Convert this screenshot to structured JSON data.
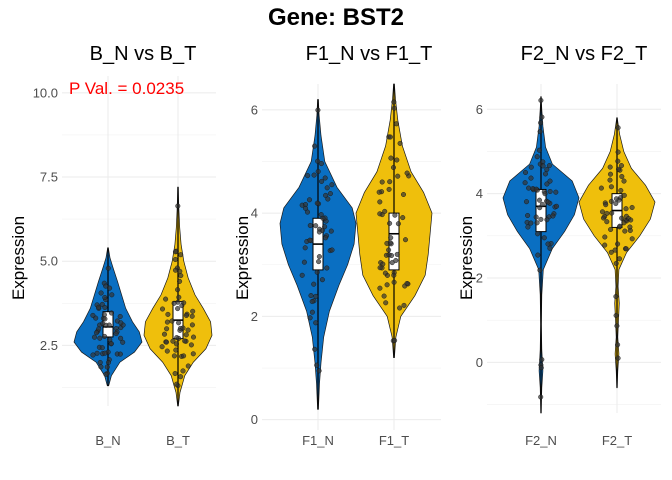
{
  "figure": {
    "title": "Gene: BST2",
    "colors": {
      "normal": "#0a6fc2",
      "tumor": "#efbf0c",
      "annotation": "#ff0000",
      "grid": "#ebebeb"
    }
  },
  "chart_data": [
    {
      "type": "violin",
      "title": "B_N vs B_T",
      "xlabel": "",
      "ylabel": "Expression",
      "ylim": [
        0.7,
        10.5
      ],
      "yticks": [
        2.5,
        5.0,
        7.5,
        10.0
      ],
      "ytick_labels": [
        "2.5",
        "5.0",
        "7.5",
        "10.0"
      ],
      "categories": [
        "B_N",
        "B_T"
      ],
      "annotation": "P Val. = 0.0235",
      "groups": [
        {
          "name": "B_N",
          "range": [
            1.3,
            5.4
          ],
          "q1": 2.75,
          "median": 3.05,
          "q3": 3.5,
          "density": [
            [
              1.3,
              0.02
            ],
            [
              1.6,
              0.1
            ],
            [
              2.0,
              0.35
            ],
            [
              2.3,
              0.78
            ],
            [
              2.6,
              1.0
            ],
            [
              2.9,
              0.92
            ],
            [
              3.2,
              0.72
            ],
            [
              3.6,
              0.52
            ],
            [
              4.0,
              0.4
            ],
            [
              4.4,
              0.28
            ],
            [
              4.8,
              0.15
            ],
            [
              5.1,
              0.06
            ],
            [
              5.4,
              0.01
            ]
          ]
        },
        {
          "name": "B_T",
          "range": [
            0.7,
            7.2
          ],
          "q1": 2.7,
          "median": 3.25,
          "q3": 3.8,
          "density": [
            [
              0.7,
              0.01
            ],
            [
              1.1,
              0.06
            ],
            [
              1.6,
              0.2
            ],
            [
              2.0,
              0.45
            ],
            [
              2.4,
              0.82
            ],
            [
              2.8,
              1.0
            ],
            [
              3.2,
              0.96
            ],
            [
              3.6,
              0.74
            ],
            [
              4.0,
              0.5
            ],
            [
              4.5,
              0.3
            ],
            [
              5.0,
              0.17
            ],
            [
              5.5,
              0.09
            ],
            [
              6.0,
              0.05
            ],
            [
              6.6,
              0.025
            ],
            [
              7.2,
              0.01
            ]
          ]
        }
      ]
    },
    {
      "type": "violin",
      "title": "F1_N vs F1_T",
      "xlabel": "",
      "ylabel": "Expression",
      "ylim": [
        -0.2,
        6.5
      ],
      "yticks": [
        0,
        2,
        4,
        6
      ],
      "ytick_labels": [
        "0",
        "2",
        "4",
        "6"
      ],
      "categories": [
        "F1_N",
        "F1_T"
      ],
      "annotation": "",
      "groups": [
        {
          "name": "F1_N",
          "range": [
            0.2,
            6.2
          ],
          "q1": 2.9,
          "median": 3.4,
          "q3": 3.9,
          "density": [
            [
              0.2,
              0.01
            ],
            [
              0.7,
              0.04
            ],
            [
              1.1,
              0.08
            ],
            [
              1.6,
              0.15
            ],
            [
              2.1,
              0.3
            ],
            [
              2.6,
              0.55
            ],
            [
              3.0,
              0.78
            ],
            [
              3.4,
              0.95
            ],
            [
              3.8,
              1.0
            ],
            [
              4.1,
              0.9
            ],
            [
              4.5,
              0.5
            ],
            [
              5.0,
              0.18
            ],
            [
              5.5,
              0.08
            ],
            [
              5.9,
              0.03
            ],
            [
              6.2,
              0.01
            ]
          ]
        },
        {
          "name": "F1_T",
          "range": [
            1.2,
            6.5
          ],
          "q1": 2.9,
          "median": 3.6,
          "q3": 4.0,
          "density": [
            [
              1.2,
              0.01
            ],
            [
              1.6,
              0.05
            ],
            [
              2.0,
              0.18
            ],
            [
              2.4,
              0.55
            ],
            [
              2.8,
              0.82
            ],
            [
              3.2,
              0.9
            ],
            [
              3.6,
              0.95
            ],
            [
              4.0,
              1.0
            ],
            [
              4.4,
              0.78
            ],
            [
              4.8,
              0.45
            ],
            [
              5.3,
              0.22
            ],
            [
              5.8,
              0.1
            ],
            [
              6.2,
              0.04
            ],
            [
              6.5,
              0.01
            ]
          ]
        }
      ]
    },
    {
      "type": "violin",
      "title": "F2_N vs F2_T",
      "xlabel": "",
      "ylabel": "Expression",
      "ylim": [
        -1.2,
        6.6
      ],
      "yticks": [
        0,
        2,
        4,
        6
      ],
      "ytick_labels": [
        "0",
        "2",
        "4",
        "6"
      ],
      "categories": [
        "F2_N",
        "F2_T"
      ],
      "annotation": "",
      "groups": [
        {
          "name": "F2_N",
          "range": [
            -1.2,
            6.3
          ],
          "q1": 3.1,
          "median": 3.7,
          "q3": 4.1,
          "density": [
            [
              -1.2,
              0.005
            ],
            [
              -0.6,
              0.02
            ],
            [
              -0.2,
              0.05
            ],
            [
              0.3,
              0.02
            ],
            [
              0.9,
              0.01
            ],
            [
              1.6,
              0.02
            ],
            [
              2.2,
              0.06
            ],
            [
              2.7,
              0.3
            ],
            [
              3.1,
              0.62
            ],
            [
              3.5,
              0.88
            ],
            [
              3.9,
              1.0
            ],
            [
              4.3,
              0.82
            ],
            [
              4.7,
              0.3
            ],
            [
              5.1,
              0.12
            ],
            [
              5.6,
              0.05
            ],
            [
              6.0,
              0.02
            ],
            [
              6.3,
              0.005
            ]
          ]
        },
        {
          "name": "F2_T",
          "range": [
            -0.6,
            5.8
          ],
          "q1": 3.2,
          "median": 3.6,
          "q3": 4.0,
          "density": [
            [
              -0.6,
              0.005
            ],
            [
              -0.2,
              0.02
            ],
            [
              0.2,
              0.05
            ],
            [
              0.6,
              0.02
            ],
            [
              1.0,
              0.04
            ],
            [
              1.4,
              0.06
            ],
            [
              1.8,
              0.03
            ],
            [
              2.2,
              0.05
            ],
            [
              2.6,
              0.25
            ],
            [
              3.0,
              0.6
            ],
            [
              3.4,
              0.88
            ],
            [
              3.8,
              1.0
            ],
            [
              4.2,
              0.75
            ],
            [
              4.6,
              0.38
            ],
            [
              5.0,
              0.18
            ],
            [
              5.4,
              0.07
            ],
            [
              5.8,
              0.005
            ]
          ]
        }
      ]
    }
  ]
}
